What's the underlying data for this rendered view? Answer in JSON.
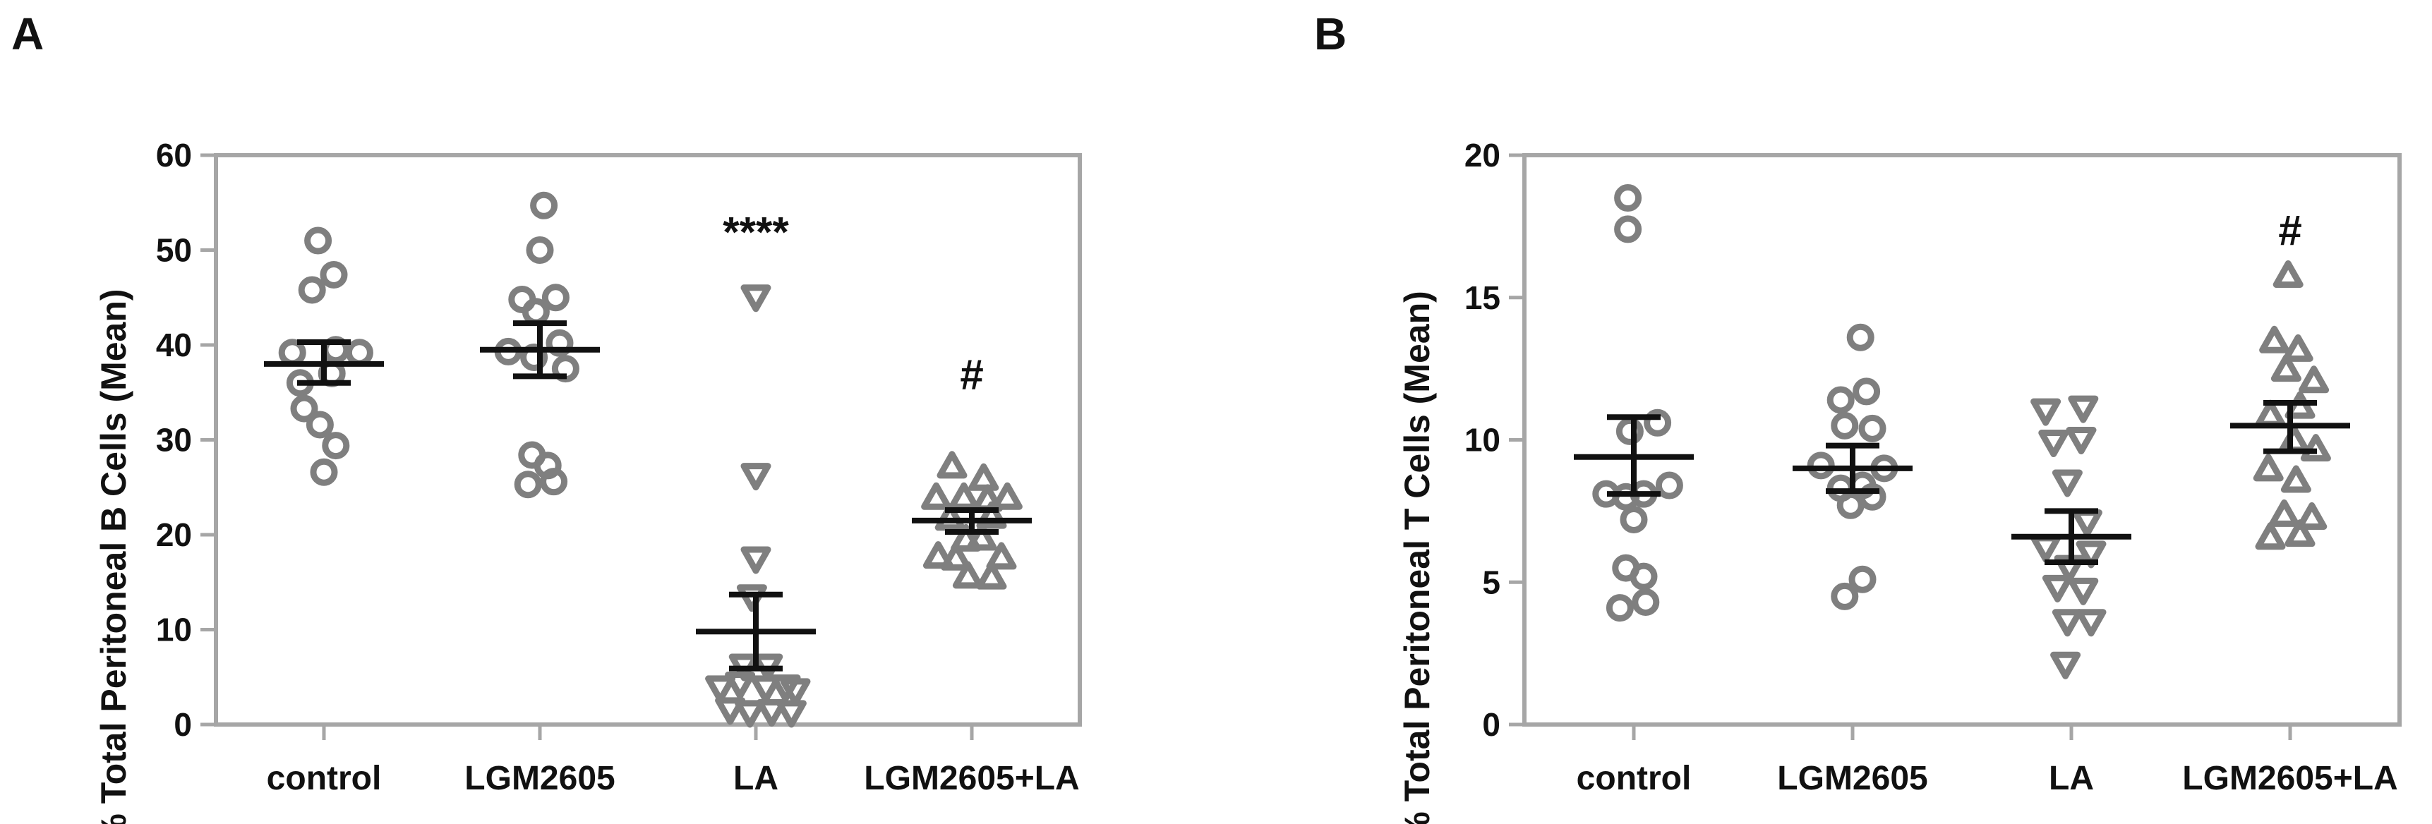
{
  "chart_data": [
    {
      "panel": "A",
      "type": "scatter",
      "ylabel": "% Total Peritoneal B Cells (Mean)",
      "ylim": [
        0,
        60
      ],
      "yticks": [
        0,
        10,
        20,
        30,
        40,
        50,
        60
      ],
      "categories": [
        "control",
        "LGM2605",
        "LA",
        "LGM2605+LA"
      ],
      "series": [
        {
          "category": "control",
          "marker": "circle",
          "points": [
            [
              -0.03,
              51
            ],
            [
              -0.06,
              45.8
            ],
            [
              0.05,
              47.4
            ],
            [
              -0.16,
              39.2
            ],
            [
              0.06,
              39.5
            ],
            [
              0.18,
              39.2
            ],
            [
              -0.12,
              36
            ],
            [
              0.04,
              37
            ],
            [
              -0.1,
              33.3
            ],
            [
              -0.02,
              31.6
            ],
            [
              0.06,
              29.4
            ],
            [
              0,
              26.6
            ]
          ],
          "mean": 38,
          "sem_low": 36,
          "sem_high": 40.3
        },
        {
          "category": "LGM2605",
          "marker": "circle",
          "points": [
            [
              0.02,
              54.7
            ],
            [
              0,
              50
            ],
            [
              -0.09,
              44.8
            ],
            [
              0.08,
              45
            ],
            [
              -0.02,
              43.5
            ],
            [
              0.1,
              40.2
            ],
            [
              -0.16,
              39.3
            ],
            [
              0.13,
              37.5
            ],
            [
              -0.03,
              38.7
            ],
            [
              -0.04,
              28.4
            ],
            [
              0.04,
              27.3
            ],
            [
              -0.06,
              25.3
            ],
            [
              0.07,
              25.6
            ]
          ],
          "mean": 39.5,
          "sem_low": 36.7,
          "sem_high": 42.3
        },
        {
          "category": "LA",
          "marker": "triangle-down",
          "points": [
            [
              0,
              45
            ],
            [
              0,
              26.2
            ],
            [
              0,
              17.4
            ],
            [
              -0.02,
              13.4
            ],
            [
              -0.06,
              6.1
            ],
            [
              0.06,
              6.1
            ],
            [
              -0.18,
              3.8
            ],
            [
              -0.08,
              4.2
            ],
            [
              0.05,
              3.8
            ],
            [
              0.15,
              3.9
            ],
            [
              0.2,
              3.5
            ],
            [
              -0.13,
              1.5
            ],
            [
              -0.03,
              1.2
            ],
            [
              0.08,
              1.3
            ],
            [
              0.18,
              1.2
            ]
          ],
          "mean": 9.8,
          "sem_low": 5.9,
          "sem_high": 13.7
        },
        {
          "category": "LGM2605+LA",
          "marker": "triangle-up",
          "points": [
            [
              -0.1,
              27.3
            ],
            [
              0.06,
              26
            ],
            [
              -0.18,
              24
            ],
            [
              -0.04,
              24
            ],
            [
              0.08,
              23.8
            ],
            [
              0.18,
              24
            ],
            [
              -0.11,
              21.8
            ],
            [
              0.1,
              22
            ],
            [
              -0.03,
              19.6
            ],
            [
              0.05,
              19.7
            ],
            [
              -0.17,
              17.8
            ],
            [
              -0.08,
              17.6
            ],
            [
              0.15,
              17.7
            ],
            [
              -0.02,
              15.7
            ],
            [
              0.1,
              15.6
            ]
          ],
          "mean": 21.5,
          "sem_low": 20.3,
          "sem_high": 22.6
        }
      ],
      "annotations": [
        {
          "category": "LA",
          "y": 52,
          "text": "****"
        },
        {
          "category": "LGM2605+LA",
          "y": 37,
          "text": "#"
        }
      ]
    },
    {
      "panel": "B",
      "type": "scatter",
      "ylabel": "% Total Peritoneal T Cells (Mean)",
      "ylim": [
        0,
        20
      ],
      "yticks": [
        0,
        5,
        10,
        15,
        20
      ],
      "categories": [
        "control",
        "LGM2605",
        "LA",
        "LGM2605+LA"
      ],
      "series": [
        {
          "category": "control",
          "marker": "circle",
          "points": [
            [
              -0.03,
              18.5
            ],
            [
              -0.03,
              17.4
            ],
            [
              0.12,
              10.6
            ],
            [
              -0.02,
              10.3
            ],
            [
              -0.14,
              8.1
            ],
            [
              -0.04,
              8
            ],
            [
              0.05,
              8.1
            ],
            [
              0.18,
              8.4
            ],
            [
              0,
              7.2
            ],
            [
              -0.04,
              5.5
            ],
            [
              0.05,
              5.2
            ],
            [
              -0.07,
              4.1
            ],
            [
              0.06,
              4.3
            ]
          ],
          "mean": 9.4,
          "sem_low": 8.1,
          "sem_high": 10.8
        },
        {
          "category": "LGM2605",
          "marker": "circle",
          "points": [
            [
              0.04,
              13.6
            ],
            [
              -0.06,
              11.4
            ],
            [
              0.07,
              11.7
            ],
            [
              -0.04,
              10.5
            ],
            [
              0.1,
              10.4
            ],
            [
              -0.16,
              9.1
            ],
            [
              0.16,
              9
            ],
            [
              -0.06,
              8.3
            ],
            [
              0.05,
              8.4
            ],
            [
              -0.01,
              7.7
            ],
            [
              0.1,
              8
            ],
            [
              0.05,
              5.1
            ],
            [
              -0.04,
              4.5
            ]
          ],
          "mean": 9,
          "sem_low": 8.2,
          "sem_high": 9.8
        },
        {
          "category": "LA",
          "marker": "triangle-down",
          "points": [
            [
              -0.13,
              11
            ],
            [
              0.06,
              11.1
            ],
            [
              -0.09,
              9.9
            ],
            [
              0.05,
              10
            ],
            [
              -0.02,
              8.5
            ],
            [
              0.08,
              7.1
            ],
            [
              -0.13,
              6.2
            ],
            [
              0.1,
              6
            ],
            [
              -0.01,
              5.5
            ],
            [
              -0.07,
              4.8
            ],
            [
              0.06,
              4.7
            ],
            [
              -0.02,
              3.6
            ],
            [
              0.1,
              3.6
            ],
            [
              -0.03,
              2.1
            ]
          ],
          "mean": 6.6,
          "sem_low": 5.7,
          "sem_high": 7.5
        },
        {
          "category": "LGM2605+LA",
          "marker": "triangle-up",
          "points": [
            [
              -0.01,
              15.8
            ],
            [
              -0.08,
              13.5
            ],
            [
              0.04,
              13.2
            ],
            [
              -0.02,
              12.5
            ],
            [
              0.12,
              12.1
            ],
            [
              0.05,
              11.2
            ],
            [
              -0.1,
              10.9
            ],
            [
              0.02,
              10
            ],
            [
              0.13,
              9.7
            ],
            [
              -0.11,
              9
            ],
            [
              0.03,
              8.6
            ],
            [
              -0.03,
              7.4
            ],
            [
              0.11,
              7.3
            ],
            [
              -0.1,
              6.6
            ],
            [
              0.05,
              6.7
            ]
          ],
          "mean": 10.5,
          "sem_low": 9.6,
          "sem_high": 11.3
        }
      ],
      "annotations": [
        {
          "category": "LGM2605+LA",
          "y": 17.4,
          "text": "#"
        }
      ]
    }
  ]
}
